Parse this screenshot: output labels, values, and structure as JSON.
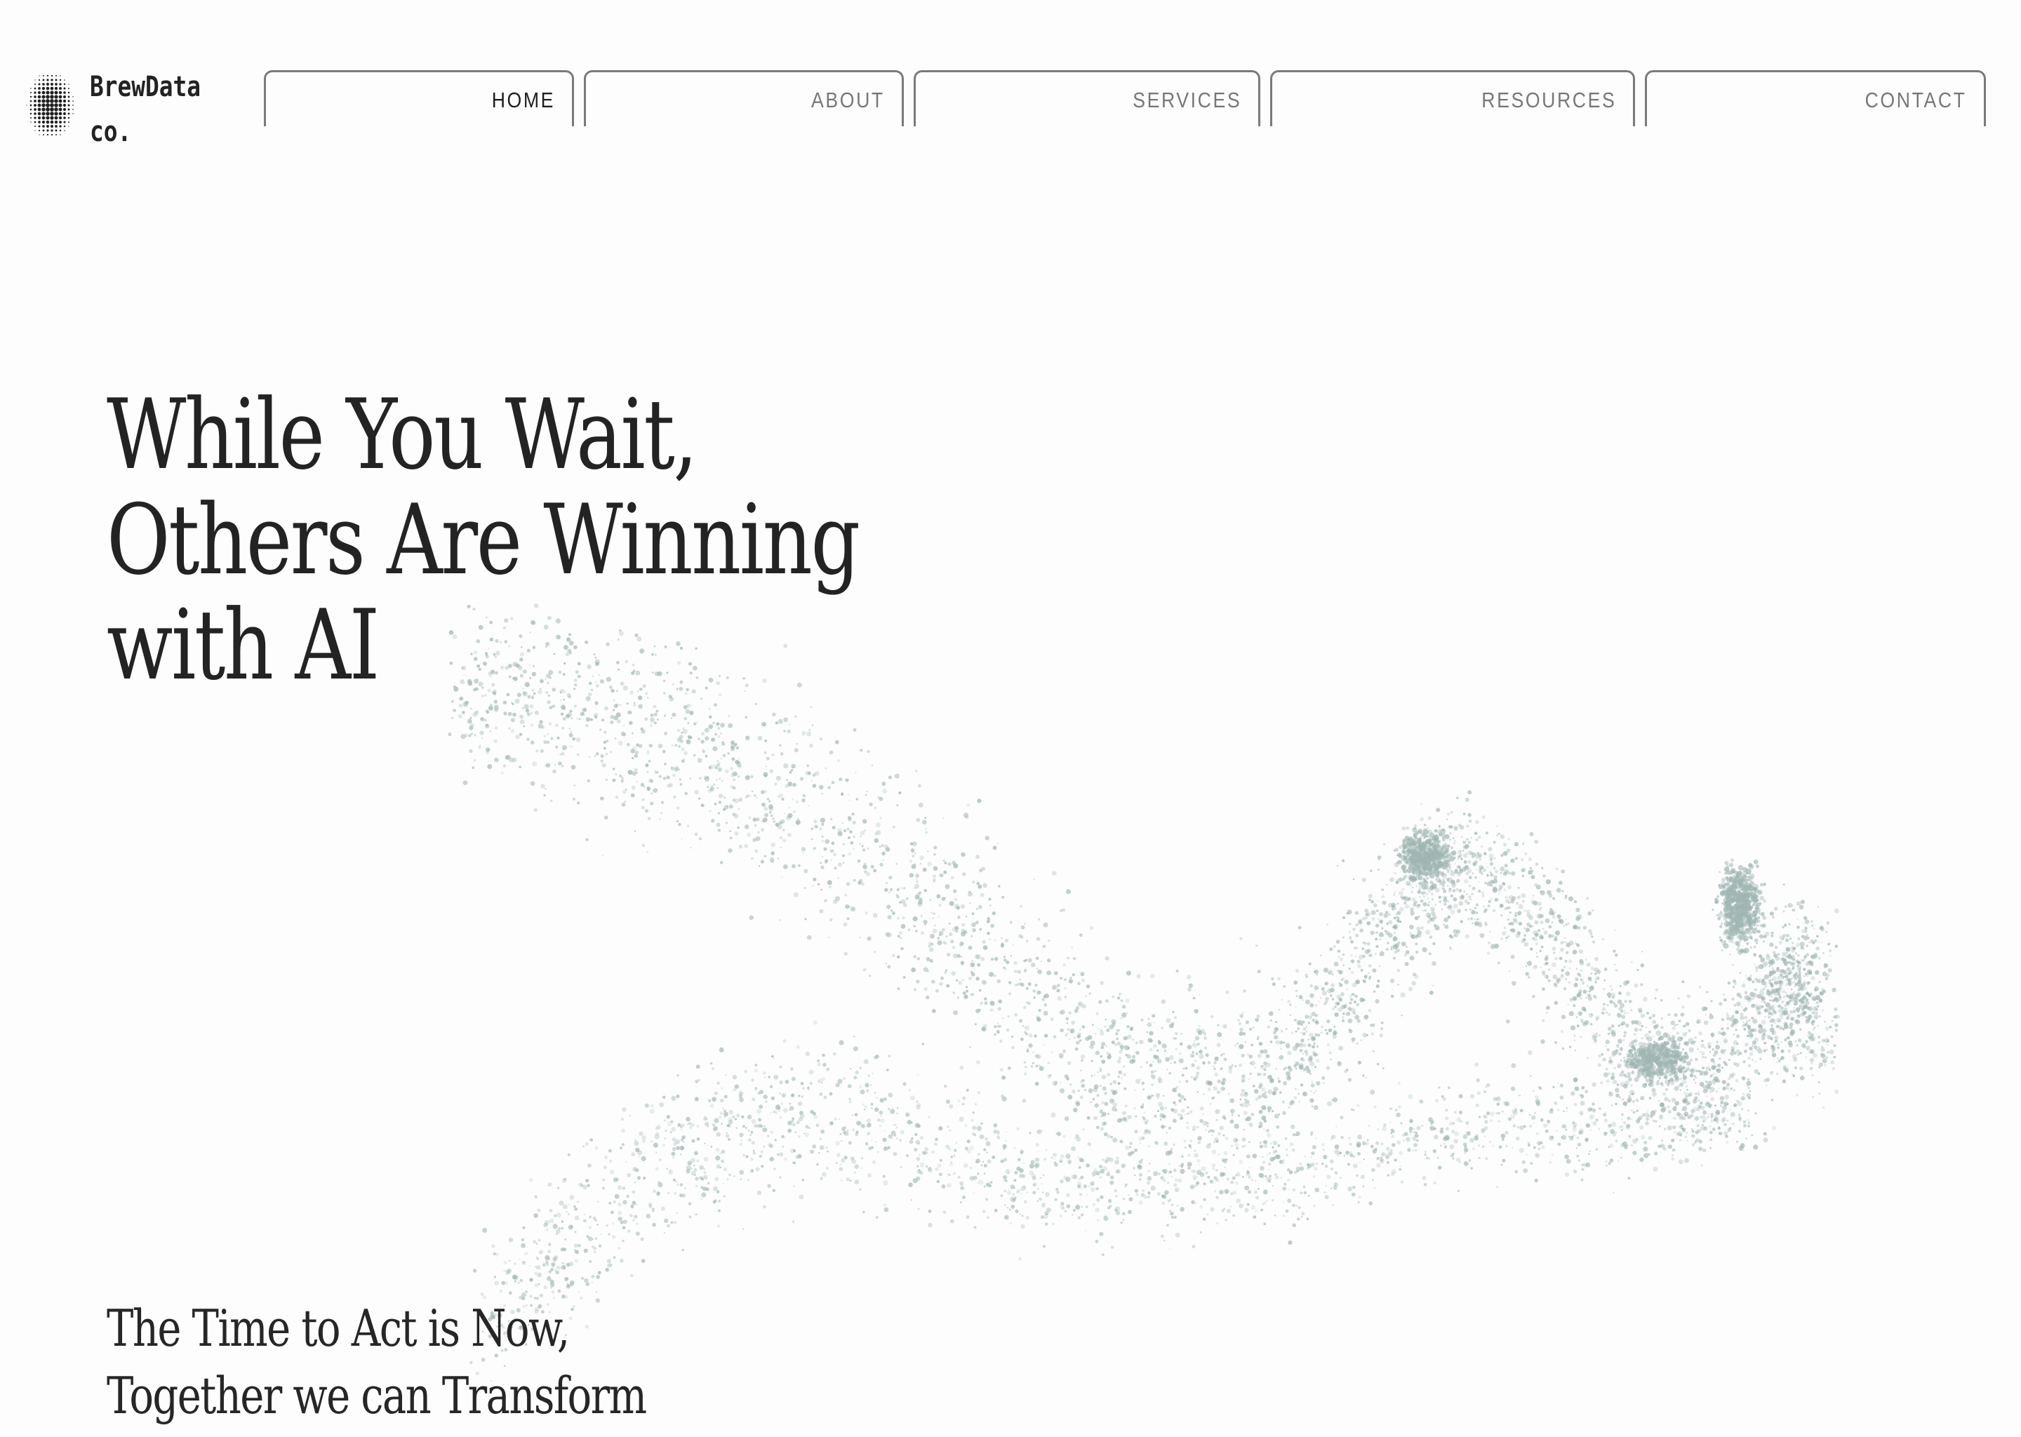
{
  "brand": {
    "name_line1": "BrewData",
    "name_line2": "co."
  },
  "nav": {
    "items": [
      {
        "label": "HOME",
        "active": true
      },
      {
        "label": "ABOUT",
        "active": false
      },
      {
        "label": "SERVICES",
        "active": false
      },
      {
        "label": "RESOURCES",
        "active": false
      },
      {
        "label": "CONTACT",
        "active": false
      }
    ]
  },
  "hero": {
    "title_lines": [
      "While You Wait,",
      "Others Are Winning",
      "with AI"
    ],
    "subtitle_lines": [
      "The Time to Act is Now,",
      "Together we can Transform"
    ]
  },
  "colors": {
    "background": "#fdfdfd",
    "text": "#232323",
    "nav_inactive": "#777777",
    "nav_border": "#7a7a7a",
    "particles": "#9fb6b2"
  },
  "icons": {
    "logo": "dot-sphere-logo-icon",
    "hero_visual": "particle-wave-graphic"
  }
}
